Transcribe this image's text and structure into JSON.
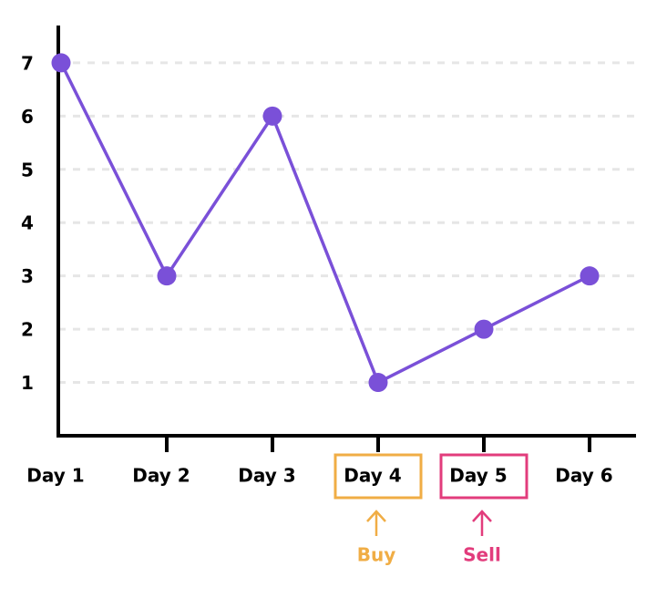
{
  "chart_data": {
    "type": "line",
    "categories": [
      "Day 1",
      "Day 2",
      "Day 3",
      "Day 4",
      "Day 5",
      "Day 6"
    ],
    "series": [
      {
        "color": "#7a50d8",
        "values": [
          7,
          3,
          6,
          1,
          2,
          3
        ]
      }
    ],
    "ylim": [
      0,
      7.7
    ],
    "yticks": [
      1,
      2,
      3,
      4,
      5,
      6,
      7
    ],
    "grid": true,
    "annotations": [
      {
        "category": "Day 4",
        "text": "Buy",
        "color": "#f0ad45"
      },
      {
        "category": "Day 5",
        "text": "Sell",
        "color": "#e23c7c"
      }
    ]
  }
}
